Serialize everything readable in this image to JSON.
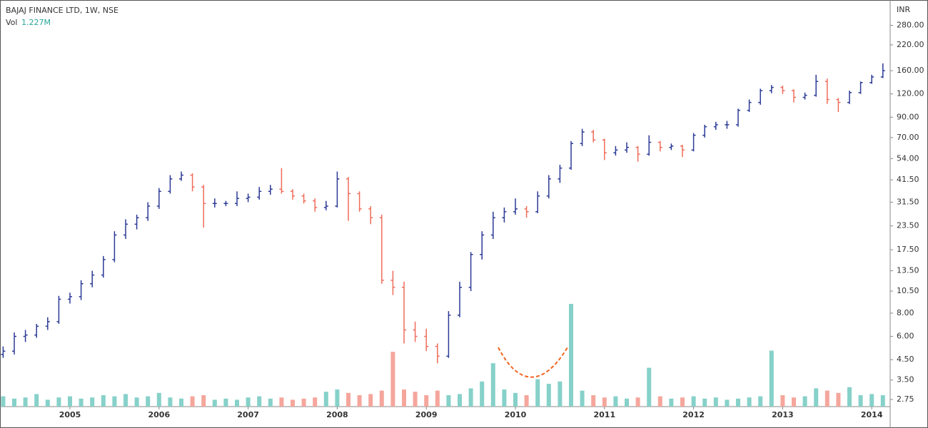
{
  "chart_data": {
    "type": "ohlc",
    "title": "BAJAJ FINANCE LTD, 1W, NSE",
    "volume_name": "Vol",
    "volume_label": "1.227M",
    "y_axis_label": "INR",
    "log_scale": true,
    "up_color": "#2b3a96",
    "down_color": "#ef6c5a",
    "volume_up_color": "#86d1c9",
    "volume_down_color": "#f5a69c",
    "ylim": [
      2.52,
      383
    ],
    "yticks": [
      {
        "value": 2.75,
        "label": "2.75"
      },
      {
        "value": 3.5,
        "label": "3.50"
      },
      {
        "value": 4.5,
        "label": "4.50"
      },
      {
        "value": 6,
        "label": "6.00"
      },
      {
        "value": 8,
        "label": "8.00"
      },
      {
        "value": 10.5,
        "label": "10.50"
      },
      {
        "value": 13.5,
        "label": "13.50"
      },
      {
        "value": 17.5,
        "label": "17.50"
      },
      {
        "value": 23.5,
        "label": "23.50"
      },
      {
        "value": 31.5,
        "label": "31.50"
      },
      {
        "value": 41.5,
        "label": "41.50"
      },
      {
        "value": 54,
        "label": "54.00"
      },
      {
        "value": 70,
        "label": "70.00"
      },
      {
        "value": 90,
        "label": "90.00"
      },
      {
        "value": 120,
        "label": "120.00"
      },
      {
        "value": 160,
        "label": "160.00"
      },
      {
        "value": 220,
        "label": "220.00"
      },
      {
        "value": 280,
        "label": "280.00"
      }
    ],
    "categories": [
      null,
      null,
      null,
      null,
      null,
      null,
      "2005",
      null,
      null,
      null,
      null,
      null,
      null,
      null,
      "2006",
      null,
      null,
      null,
      null,
      null,
      null,
      null,
      "2007",
      null,
      null,
      null,
      null,
      null,
      null,
      null,
      "2008",
      null,
      null,
      null,
      null,
      null,
      null,
      null,
      "2009",
      null,
      null,
      null,
      null,
      null,
      null,
      null,
      "2010",
      null,
      null,
      null,
      null,
      null,
      null,
      null,
      "2011",
      null,
      null,
      null,
      null,
      null,
      null,
      null,
      "2012",
      null,
      null,
      null,
      null,
      null,
      null,
      null,
      "2013",
      null,
      null,
      null,
      null,
      null,
      null,
      null,
      "2014",
      null
    ],
    "ohlc": [
      [
        4.8,
        5.3,
        4.6,
        5.0
      ],
      [
        5.0,
        6.3,
        4.8,
        6.0
      ],
      [
        6.0,
        6.5,
        5.6,
        6.1
      ],
      [
        6.1,
        7.0,
        5.9,
        6.8
      ],
      [
        6.8,
        7.6,
        6.5,
        7.2
      ],
      [
        7.2,
        9.9,
        7.0,
        9.5
      ],
      [
        9.5,
        10.3,
        9.0,
        9.8
      ],
      [
        9.8,
        12.0,
        9.4,
        11.5
      ],
      [
        11.5,
        13.5,
        11.0,
        12.8
      ],
      [
        12.8,
        16.2,
        12.4,
        15.5
      ],
      [
        15.5,
        22,
        15,
        21
      ],
      [
        21,
        25.5,
        20,
        24
      ],
      [
        24,
        27,
        22.5,
        26
      ],
      [
        26,
        31.5,
        25,
        30
      ],
      [
        30,
        37.5,
        29,
        36
      ],
      [
        36,
        44,
        35,
        42
      ],
      [
        42,
        46,
        41,
        44
      ],
      [
        44,
        45,
        36,
        38
      ],
      [
        38,
        39,
        23,
        31
      ],
      [
        31,
        33,
        29.5,
        31
      ],
      [
        31,
        32,
        30,
        31
      ],
      [
        31,
        36,
        30,
        33
      ],
      [
        33,
        35,
        31.5,
        33.5
      ],
      [
        33.5,
        38,
        32.5,
        36
      ],
      [
        36,
        39,
        34.5,
        37
      ],
      [
        37,
        48,
        35,
        36
      ],
      [
        36,
        37,
        32.5,
        34
      ],
      [
        34,
        35,
        31,
        32
      ],
      [
        32,
        33,
        28,
        29.5
      ],
      [
        29.5,
        32,
        28.5,
        30
      ],
      [
        30,
        46,
        29.5,
        42
      ],
      [
        42,
        43,
        25,
        35
      ],
      [
        35,
        36,
        28,
        29
      ],
      [
        29,
        30,
        24,
        26
      ],
      [
        26,
        27,
        11.5,
        12
      ],
      [
        12,
        13.5,
        10,
        11
      ],
      [
        11,
        11.8,
        5.5,
        6.5
      ],
      [
        6.5,
        7.2,
        5.6,
        6.0
      ],
      [
        6.0,
        6.6,
        5.0,
        5.3
      ],
      [
        5.3,
        5.5,
        4.3,
        4.7
      ],
      [
        4.7,
        8.2,
        4.6,
        7.8
      ],
      [
        7.8,
        11.8,
        7.6,
        11
      ],
      [
        11,
        17,
        10.5,
        16.5
      ],
      [
        16.5,
        22,
        15.5,
        21
      ],
      [
        21,
        28,
        20,
        26
      ],
      [
        26,
        29.5,
        24.5,
        28
      ],
      [
        28,
        33,
        27,
        29
      ],
      [
        29,
        30,
        26,
        28
      ],
      [
        28,
        36,
        27.5,
        34
      ],
      [
        34,
        44,
        33,
        42
      ],
      [
        42,
        50,
        40,
        48
      ],
      [
        48,
        67,
        47,
        65
      ],
      [
        65,
        78,
        63,
        75
      ],
      [
        75,
        77,
        66,
        68
      ],
      [
        68,
        69,
        53,
        58
      ],
      [
        58,
        63,
        56,
        60
      ],
      [
        60,
        66,
        58,
        62
      ],
      [
        62,
        63,
        52,
        57
      ],
      [
        57,
        72,
        56,
        66
      ],
      [
        66,
        67,
        59,
        62
      ],
      [
        62,
        65,
        60,
        63
      ],
      [
        63,
        64,
        55,
        60
      ],
      [
        60,
        74,
        59,
        72
      ],
      [
        72,
        82,
        70,
        80
      ],
      [
        80,
        85,
        77,
        82
      ],
      [
        82,
        86,
        78,
        82
      ],
      [
        82,
        100,
        80,
        98
      ],
      [
        98,
        112,
        96,
        108
      ],
      [
        108,
        128,
        105,
        125
      ],
      [
        125,
        134,
        121,
        130
      ],
      [
        130,
        133,
        120,
        125
      ],
      [
        125,
        127,
        108,
        115
      ],
      [
        115,
        122,
        112,
        118
      ],
      [
        118,
        152,
        116,
        140
      ],
      [
        140,
        145,
        106,
        112
      ],
      [
        112,
        114,
        96,
        108
      ],
      [
        108,
        125,
        106,
        122
      ],
      [
        122,
        140,
        120,
        138
      ],
      [
        138,
        152,
        136,
        148
      ],
      [
        148,
        175,
        146,
        160
      ]
    ],
    "volume": [
      0.9,
      0.7,
      0.8,
      1.1,
      0.6,
      0.8,
      0.9,
      0.7,
      0.8,
      1.0,
      0.9,
      1.1,
      0.8,
      0.9,
      1.2,
      0.8,
      0.7,
      0.9,
      1.0,
      0.6,
      0.7,
      0.6,
      0.8,
      0.9,
      0.7,
      0.8,
      0.6,
      0.7,
      0.8,
      1.3,
      1.5,
      1.2,
      1.0,
      1.1,
      1.4,
      4.8,
      1.5,
      1.3,
      1.0,
      1.4,
      1.0,
      1.1,
      1.6,
      2.2,
      3.8,
      1.5,
      1.2,
      1.0,
      2.4,
      2.0,
      2.2,
      9.0,
      1.4,
      1.0,
      0.8,
      0.9,
      0.7,
      0.8,
      3.4,
      0.9,
      0.7,
      0.8,
      0.9,
      0.7,
      0.8,
      0.6,
      0.7,
      0.8,
      0.9,
      4.9,
      1.0,
      0.8,
      0.9,
      1.6,
      1.4,
      1.2,
      1.7,
      1.0,
      1.1,
      1.0
    ]
  }
}
